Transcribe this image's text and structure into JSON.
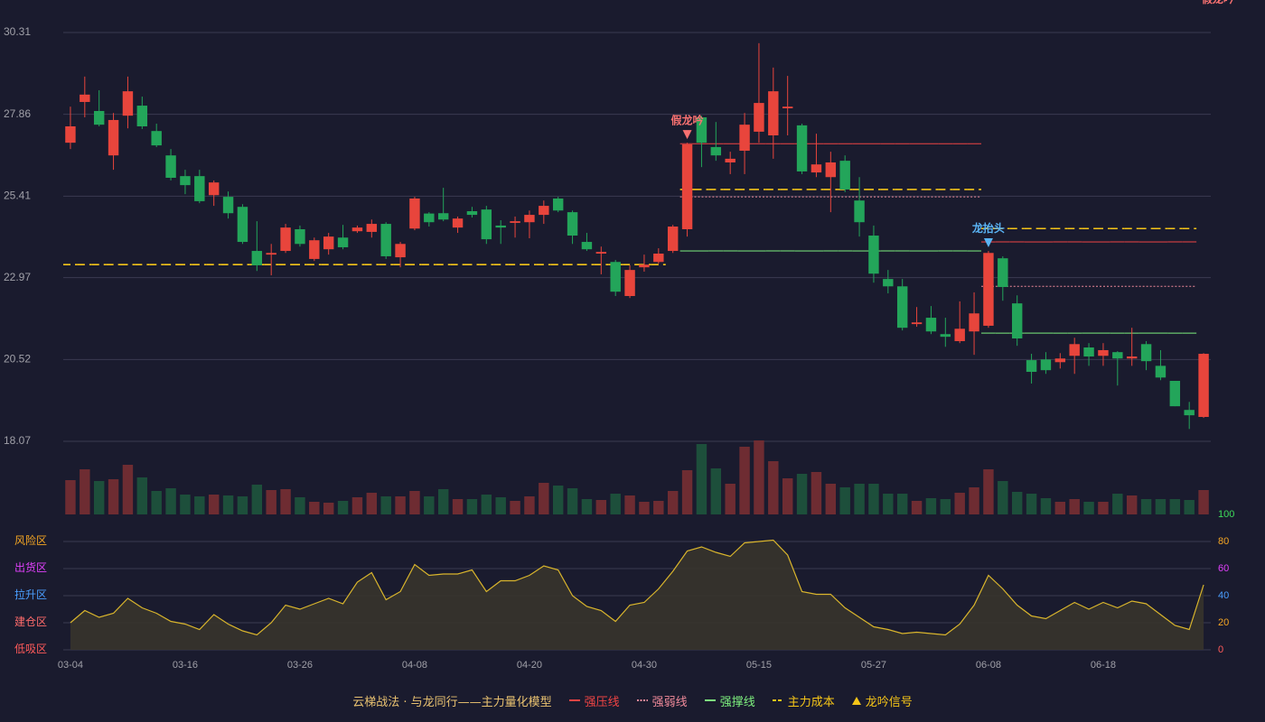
{
  "chart_data": [
    {
      "type": "candlestick",
      "categories": [
        "03-04",
        null,
        null,
        null,
        null,
        null,
        null,
        null,
        "03-16",
        null,
        null,
        null,
        null,
        null,
        null,
        null,
        "03-26",
        null,
        null,
        null,
        null,
        null,
        null,
        null,
        "04-08",
        null,
        null,
        null,
        null,
        null,
        null,
        null,
        "04-20",
        null,
        null,
        null,
        null,
        null,
        null,
        null,
        "04-30",
        null,
        null,
        null,
        null,
        null,
        null,
        null,
        "05-15",
        null,
        null,
        null,
        null,
        null,
        null,
        null,
        "05-27",
        null,
        null,
        null,
        null,
        null,
        null,
        null,
        "06-08",
        null,
        null,
        null,
        null,
        null,
        null,
        null,
        "06-18",
        null,
        null,
        null,
        null,
        null,
        null,
        null
      ],
      "open": [
        27.01,
        28.23,
        27.96,
        26.63,
        27.82,
        28.12,
        27.36,
        26.63,
        26.01,
        26.01,
        25.44,
        25.39,
        25.09,
        23.77,
        23.66,
        23.77,
        24.42,
        23.53,
        23.82,
        24.17,
        24.36,
        24.34,
        24.58,
        23.58,
        24.44,
        24.89,
        24.9,
        24.47,
        24.96,
        25.01,
        24.53,
        24.61,
        24.63,
        24.85,
        25.34,
        24.93,
        24.04,
        23.69,
        23.44,
        22.42,
        23.28,
        23.44,
        23.77,
        24.42,
        27.77,
        26.88,
        26.42,
        26.77,
        27.34,
        27.23,
        28.04,
        27.53,
        26.12,
        25.98,
        26.47,
        25.28,
        24.23,
        22.93,
        22.71,
        21.58,
        21.77,
        21.28,
        21.07,
        21.36,
        21.53,
        23.55,
        22.2,
        20.5,
        20.52,
        20.44,
        20.63,
        20.88,
        20.63,
        20.74,
        20.55,
        20.98,
        20.33,
        19.88,
        19.01,
        18.8
      ],
      "high": [
        28.09,
        28.99,
        28.58,
        27.9,
        28.99,
        28.39,
        27.58,
        26.82,
        26.2,
        26.2,
        25.88,
        25.55,
        25.17,
        24.66,
        23.98,
        24.58,
        24.53,
        24.17,
        24.31,
        24.55,
        24.53,
        24.71,
        24.63,
        24.04,
        25.39,
        24.93,
        25.66,
        24.8,
        25.09,
        25.12,
        24.69,
        24.8,
        24.98,
        25.28,
        25.39,
        24.98,
        24.31,
        23.9,
        23.5,
        23.34,
        23.66,
        23.85,
        24.55,
        27.01,
        27.82,
        27.63,
        26.74,
        27.9,
        29.99,
        29.26,
        29.01,
        27.58,
        27.28,
        26.74,
        26.63,
        25.98,
        24.53,
        23.2,
        22.93,
        22.09,
        22.12,
        21.77,
        22.26,
        22.53,
        23.77,
        23.61,
        22.44,
        20.69,
        20.74,
        20.71,
        21.17,
        21.01,
        21.01,
        20.77,
        21.47,
        21.07,
        20.8,
        19.88,
        19.25,
        20.71
      ],
      "low": [
        26.82,
        27.77,
        27.5,
        26.2,
        27.44,
        27.42,
        26.88,
        25.88,
        25.47,
        25.2,
        25.12,
        24.74,
        23.98,
        23.17,
        23.04,
        23.71,
        23.9,
        23.47,
        23.66,
        23.82,
        24.31,
        24.17,
        23.53,
        23.28,
        24.39,
        24.5,
        24.66,
        24.31,
        24.77,
        23.98,
        23.98,
        24.17,
        24.15,
        24.58,
        24.93,
        23.98,
        23.77,
        23.07,
        22.42,
        22.36,
        23.15,
        23.39,
        23.71,
        24.2,
        26.28,
        26.47,
        26.07,
        26.07,
        27.01,
        26.53,
        27.23,
        26.07,
        25.98,
        24.93,
        25.53,
        24.2,
        22.82,
        22.5,
        21.39,
        21.5,
        21.28,
        20.9,
        21.01,
        20.66,
        21.47,
        22.28,
        20.93,
        19.8,
        20.09,
        20.25,
        20.09,
        20.33,
        20.33,
        19.74,
        20.33,
        20.2,
        19.9,
        19.12,
        18.44,
        18.77
      ],
      "close": [
        27.5,
        28.45,
        27.55,
        27.69,
        28.55,
        27.5,
        26.93,
        25.96,
        25.74,
        25.26,
        25.82,
        24.9,
        24.04,
        23.34,
        23.71,
        24.47,
        23.98,
        24.09,
        24.2,
        23.88,
        24.47,
        24.58,
        23.61,
        23.98,
        25.34,
        24.63,
        24.71,
        24.74,
        24.85,
        24.12,
        24.47,
        24.66,
        24.85,
        25.12,
        24.98,
        24.23,
        23.82,
        23.74,
        22.55,
        23.2,
        23.36,
        23.69,
        24.5,
        26.96,
        27.01,
        26.63,
        26.53,
        27.55,
        28.2,
        28.55,
        28.09,
        26.15,
        26.36,
        26.42,
        25.61,
        24.63,
        23.09,
        22.71,
        21.47,
        21.63,
        21.36,
        21.2,
        21.44,
        21.9,
        23.71,
        22.69,
        21.15,
        20.15,
        20.2,
        20.55,
        20.98,
        20.61,
        20.8,
        20.55,
        20.61,
        20.47,
        19.98,
        19.12,
        18.85,
        20.69
      ],
      "up_color": "#e8453c",
      "down_color": "#23a55a",
      "ylim": [
        18.07,
        30.31
      ],
      "yticks": [
        18.07,
        20.52,
        22.97,
        25.41,
        27.86,
        30.31
      ],
      "grid": true,
      "series": [
        {
          "name": "强压线",
          "color": "#ef4444",
          "dash": "solid",
          "values": [
            null,
            null,
            null,
            null,
            null,
            null,
            null,
            null,
            null,
            null,
            null,
            null,
            null,
            null,
            null,
            null,
            null,
            null,
            null,
            null,
            null,
            null,
            null,
            null,
            null,
            null,
            null,
            null,
            null,
            null,
            null,
            null,
            null,
            null,
            null,
            null,
            null,
            null,
            null,
            null,
            null,
            null,
            null,
            26.98,
            26.98,
            26.98,
            26.98,
            26.98,
            26.98,
            26.98,
            26.98,
            26.98,
            26.98,
            26.98,
            26.98,
            26.98,
            26.98,
            26.98,
            26.98,
            26.98,
            26.98,
            26.98,
            26.98,
            26.98,
            24.04,
            24.04,
            24.04,
            24.04,
            24.04,
            24.04,
            24.04,
            24.04,
            24.04,
            24.04,
            24.04,
            24.04,
            24.04,
            24.04,
            24.04,
            null
          ]
        },
        {
          "name": "强弱线",
          "color": "#f08a9a",
          "dash": "dotted",
          "values": [
            null,
            null,
            null,
            null,
            null,
            null,
            null,
            null,
            null,
            null,
            null,
            null,
            null,
            null,
            null,
            null,
            null,
            null,
            null,
            null,
            null,
            null,
            null,
            null,
            null,
            null,
            null,
            null,
            null,
            null,
            null,
            null,
            null,
            null,
            null,
            null,
            null,
            null,
            null,
            null,
            null,
            null,
            null,
            25.39,
            25.39,
            25.39,
            25.39,
            25.39,
            25.39,
            25.39,
            25.39,
            25.39,
            25.39,
            25.39,
            25.39,
            25.39,
            25.39,
            25.39,
            25.39,
            25.39,
            25.39,
            25.39,
            25.39,
            25.39,
            22.71,
            22.71,
            22.71,
            22.71,
            22.71,
            22.71,
            22.71,
            22.71,
            22.71,
            22.71,
            22.71,
            22.71,
            22.71,
            22.71,
            22.71,
            null
          ]
        },
        {
          "name": "强撑线",
          "color": "#7ef07e",
          "dash": "solid",
          "values": [
            null,
            null,
            null,
            null,
            null,
            null,
            null,
            null,
            null,
            null,
            null,
            null,
            null,
            null,
            null,
            null,
            null,
            null,
            null,
            null,
            null,
            null,
            null,
            null,
            null,
            null,
            null,
            null,
            null,
            null,
            null,
            null,
            null,
            null,
            null,
            null,
            null,
            null,
            null,
            null,
            null,
            null,
            null,
            23.77,
            23.77,
            23.77,
            23.77,
            23.77,
            23.77,
            23.77,
            23.77,
            23.77,
            23.77,
            23.77,
            23.77,
            23.77,
            23.77,
            23.77,
            23.77,
            23.77,
            23.77,
            23.77,
            23.77,
            23.77,
            21.31,
            21.31,
            21.31,
            21.31,
            21.31,
            21.31,
            21.31,
            21.31,
            21.31,
            21.31,
            21.31,
            21.31,
            21.31,
            21.31,
            21.31,
            null
          ]
        },
        {
          "name": "主力成本",
          "color": "#f5c518",
          "dash": "dashed",
          "values": [
            23.36,
            23.36,
            23.36,
            23.36,
            23.36,
            23.36,
            23.36,
            23.36,
            23.36,
            23.36,
            23.36,
            23.36,
            23.36,
            23.36,
            23.36,
            23.36,
            23.36,
            23.36,
            23.36,
            23.36,
            23.36,
            23.36,
            23.36,
            23.36,
            23.36,
            23.36,
            23.36,
            23.36,
            23.36,
            23.36,
            23.36,
            23.36,
            23.36,
            23.36,
            23.36,
            23.36,
            23.36,
            23.36,
            23.36,
            23.36,
            23.36,
            23.36,
            null,
            25.61,
            25.61,
            25.61,
            25.61,
            25.61,
            25.61,
            25.61,
            25.61,
            25.61,
            25.61,
            25.61,
            25.61,
            25.61,
            25.61,
            25.61,
            25.61,
            25.61,
            25.61,
            25.61,
            25.61,
            25.61,
            24.44,
            24.44,
            24.44,
            24.44,
            24.44,
            24.44,
            24.44,
            24.44,
            24.44,
            24.44,
            24.44,
            24.44,
            24.44,
            24.44,
            24.44,
            null
          ]
        }
      ],
      "signals": [
        null,
        null,
        null,
        null,
        null,
        null,
        null,
        null,
        null,
        null,
        null,
        null,
        null,
        null,
        null,
        null,
        null,
        null,
        null,
        null,
        null,
        null,
        null,
        null,
        null,
        null,
        null,
        null,
        null,
        null,
        null,
        null,
        null,
        null,
        null,
        null,
        null,
        null,
        null,
        null,
        null,
        null,
        null,
        {
          "label": "假龙吟",
          "color": "#f87171"
        },
        null,
        null,
        null,
        null,
        null,
        null,
        null,
        null,
        null,
        null,
        null,
        null,
        null,
        null,
        null,
        null,
        null,
        null,
        null,
        null,
        {
          "label": "龙抬头",
          "color": "#5ab4f5"
        },
        null,
        null,
        null,
        null,
        null,
        null,
        null,
        null,
        null,
        null,
        null,
        null,
        null,
        null,
        null,
        {
          "label": "假龙吟",
          "color": "#f87171"
        }
      ],
      "signal_legend": {
        "name": "龙吟信号",
        "color": "#f5c518"
      },
      "legend_title": "云梯战法 · 与龙同行——主力量化模型"
    },
    {
      "type": "bar",
      "values": [
        38,
        50,
        37,
        39,
        55,
        41,
        26,
        29,
        22,
        20,
        22,
        21,
        20,
        33,
        27,
        28,
        19,
        14,
        13,
        15,
        19,
        24,
        20,
        20,
        26,
        20,
        28,
        17,
        17,
        22,
        19,
        15,
        20,
        35,
        32,
        29,
        17,
        16,
        23,
        21,
        14,
        15,
        26,
        49,
        78,
        51,
        34,
        75,
        82,
        59,
        40,
        45,
        47,
        34,
        30,
        34,
        34,
        23,
        23,
        15,
        18,
        17,
        24,
        30,
        50,
        37,
        25,
        23,
        18,
        14,
        17,
        14,
        14,
        23,
        21,
        17,
        17,
        17,
        16,
        27
      ],
      "up_color": "#6e2c32",
      "down_color": "#1d4f3b"
    },
    {
      "type": "area",
      "values": [
        20,
        29,
        24,
        27,
        38,
        31,
        27,
        21,
        19,
        15,
        26,
        19,
        14,
        11,
        20,
        33,
        30,
        34,
        38,
        34,
        50,
        57,
        37,
        43,
        63,
        55,
        56,
        56,
        59,
        43,
        51,
        51,
        55,
        62,
        59,
        40,
        32,
        29,
        21,
        33,
        35,
        45,
        58,
        73,
        76,
        72,
        69,
        79,
        80,
        81,
        70,
        43,
        41,
        41,
        31,
        24,
        17,
        15,
        12,
        13,
        12,
        11,
        19,
        33,
        55,
        45,
        33,
        25,
        23,
        29,
        35,
        30,
        35,
        31,
        36,
        34,
        26,
        18,
        15,
        48
      ],
      "color": "#d9b52c",
      "fill": "#3a352c",
      "ylim": [
        0,
        100
      ],
      "yticks": [
        0,
        20,
        40,
        60,
        80,
        100
      ],
      "ytick_colors": [
        "#ff5a5a",
        "#f5a623",
        "#4a9eff",
        "#e040fb",
        "#f5a623",
        "#3ddc5a"
      ],
      "zone_labels": [
        "低吸区",
        "建仓区",
        "拉升区",
        "出货区",
        "风险区",
        null
      ],
      "zone_colors": [
        "#ff5a5a",
        "#ff6b6b",
        "#4a9eff",
        "#e040fb",
        "#f5a623",
        null
      ]
    }
  ]
}
